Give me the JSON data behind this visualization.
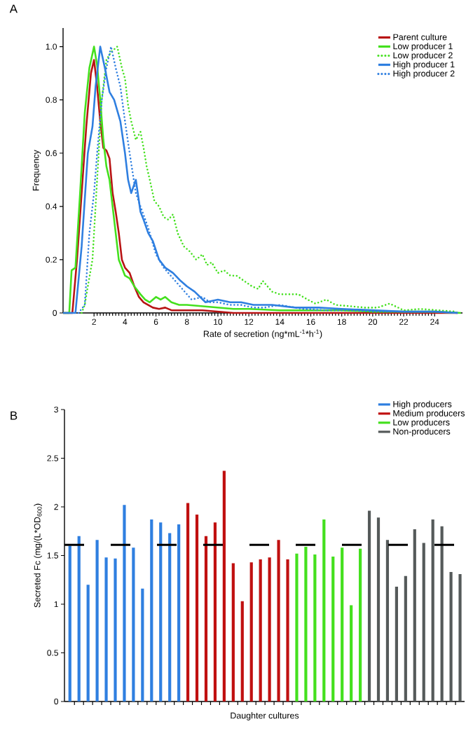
{
  "chart_data": [
    {
      "type": "line",
      "title": "A",
      "xlabel": "Rate of secretion (ng*mL$^{-1}$*h$^{-1}$)",
      "ylabel": "Frequency",
      "xlim": [
        0,
        25.8
      ],
      "ylim": [
        0,
        1.07
      ],
      "xticks": [
        2,
        4,
        6,
        8,
        10,
        12,
        14,
        16,
        18,
        20,
        22,
        24
      ],
      "yticks": [
        0,
        0.2,
        0.4,
        0.6,
        0.8,
        {
          "value": 1,
          "label": "1.0"
        }
      ],
      "legend": "top right",
      "line_style": "solid",
      "series": [
        {
          "name": "Parent culture",
          "color": "#b81414",
          "x": [
            0,
            0.6,
            0.9,
            1.2,
            1.5,
            1.8,
            2.0,
            2.2,
            2.4,
            2.6,
            2.8,
            3.0,
            3.2,
            3.4,
            3.6,
            3.8,
            4.0,
            4.3,
            4.6,
            4.9,
            5.2,
            5.5,
            5.8,
            6.2,
            6.6,
            7.0,
            7.5,
            8.0,
            9.0,
            10.0,
            11.0,
            12.0,
            14,
            18,
            22,
            25.5
          ],
          "values": [
            0,
            0,
            0.2,
            0.45,
            0.7,
            0.9,
            0.95,
            0.85,
            0.72,
            0.62,
            0.61,
            0.58,
            0.45,
            0.38,
            0.3,
            0.2,
            0.17,
            0.15,
            0.1,
            0.06,
            0.04,
            0.03,
            0.02,
            0.015,
            0.02,
            0.01,
            0.01,
            0.01,
            0.01,
            0.005,
            0,
            0,
            0,
            0,
            0,
            0
          ]
        },
        {
          "name": "Low producer 1",
          "color": "#44e01e",
          "x": [
            0,
            0.4,
            0.55,
            0.8,
            1.1,
            1.4,
            1.7,
            2.0,
            2.2,
            2.4,
            2.6,
            2.8,
            3.0,
            3.2,
            3.4,
            3.6,
            3.8,
            4.0,
            4.3,
            4.6,
            5.0,
            5.3,
            5.6,
            6.0,
            6.3,
            6.6,
            7.0,
            7.5,
            8.0,
            9.0,
            10.0,
            11.0,
            12.0,
            14.0,
            16.0,
            18.0,
            20.0,
            22.0,
            24.0,
            25.7
          ],
          "values": [
            0,
            0,
            0.16,
            0.17,
            0.45,
            0.75,
            0.92,
            1.0,
            0.93,
            0.8,
            0.65,
            0.55,
            0.5,
            0.4,
            0.3,
            0.2,
            0.17,
            0.14,
            0.13,
            0.1,
            0.07,
            0.05,
            0.04,
            0.06,
            0.05,
            0.06,
            0.04,
            0.03,
            0.03,
            0.025,
            0.02,
            0.015,
            0.015,
            0.01,
            0.01,
            0.01,
            0.005,
            0.005,
            0.005,
            0
          ]
        },
        {
          "name": "Low producer 2",
          "color": "#44e01e",
          "line_style": "dotted",
          "x": [
            1.2,
            1.4,
            1.6,
            1.9,
            2.1,
            2.3,
            2.5,
            2.8,
            3.1,
            3.5,
            3.8,
            4.0,
            4.2,
            4.4,
            4.7,
            5.0,
            5.2,
            5.4,
            5.6,
            5.9,
            6.2,
            6.5,
            6.8,
            7.1,
            7.4,
            7.8,
            8.2,
            8.6,
            9.0,
            9.3,
            9.6,
            10.0,
            10.4,
            10.8,
            11.2,
            11.7,
            12.2,
            12.6,
            12.9,
            13.5,
            14.0,
            14.6,
            15.2,
            15.8,
            16.3,
            17.0,
            17.6,
            18.6,
            19.5,
            20.3,
            21.1,
            22.0,
            23.1,
            24.2,
            25.4
          ],
          "values": [
            0,
            0.03,
            0.1,
            0.2,
            0.4,
            0.6,
            0.8,
            0.95,
            0.98,
            1.0,
            0.92,
            0.88,
            0.78,
            0.72,
            0.65,
            0.68,
            0.62,
            0.55,
            0.5,
            0.42,
            0.4,
            0.36,
            0.35,
            0.37,
            0.3,
            0.25,
            0.23,
            0.2,
            0.22,
            0.18,
            0.19,
            0.15,
            0.16,
            0.14,
            0.14,
            0.12,
            0.1,
            0.09,
            0.12,
            0.08,
            0.07,
            0.07,
            0.07,
            0.05,
            0.035,
            0.05,
            0.03,
            0.025,
            0.02,
            0.02,
            0.035,
            0.01,
            0.015,
            0.01,
            0.005
          ]
        },
        {
          "name": "High producer 1",
          "color": "#2f7fe0",
          "x": [
            0,
            0.8,
            1.2,
            1.6,
            1.9,
            2.1,
            2.4,
            2.7,
            3.0,
            3.3,
            3.7,
            4.0,
            4.2,
            4.4,
            4.7,
            5.0,
            5.2,
            5.5,
            5.8,
            6.2,
            6.6,
            7.1,
            7.6,
            8.0,
            8.5,
            9.2,
            10.0,
            10.8,
            11.5,
            12.3,
            13.5,
            15.0,
            16.5,
            18.0,
            20.0,
            22.0,
            24.0,
            25.5
          ],
          "values": [
            0,
            0,
            0.25,
            0.6,
            0.7,
            0.85,
            1.0,
            0.92,
            0.83,
            0.8,
            0.72,
            0.6,
            0.5,
            0.45,
            0.5,
            0.38,
            0.35,
            0.3,
            0.27,
            0.2,
            0.17,
            0.15,
            0.12,
            0.1,
            0.08,
            0.04,
            0.05,
            0.04,
            0.04,
            0.03,
            0.03,
            0.02,
            0.02,
            0.015,
            0.01,
            0.005,
            0.005,
            0
          ]
        },
        {
          "name": "High producer 2",
          "color": "#2f7fe0",
          "line_style": "dotted",
          "x": [
            1.0,
            1.4,
            1.7,
            2.0,
            2.2,
            2.5,
            2.8,
            3.1,
            3.4,
            3.7,
            4.0,
            4.3,
            4.7,
            5.0,
            5.5,
            6.0,
            6.5,
            7.1,
            7.7,
            8.3,
            9.0,
            9.5,
            10.0,
            10.8,
            11.5,
            12.3,
            13.0,
            14.0,
            15.5,
            17.0,
            18.5,
            20.0,
            22.0,
            24.0,
            25.5
          ],
          "values": [
            0,
            0.03,
            0.3,
            0.45,
            0.6,
            0.8,
            0.92,
            1.0,
            0.92,
            0.85,
            0.72,
            0.6,
            0.45,
            0.4,
            0.32,
            0.22,
            0.17,
            0.13,
            0.09,
            0.05,
            0.06,
            0.04,
            0.04,
            0.03,
            0.03,
            0.02,
            0.02,
            0.03,
            0.015,
            0.01,
            0.01,
            0.005,
            0.005,
            0.005,
            0
          ]
        }
      ]
    },
    {
      "type": "bar",
      "title": "B",
      "xlabel": "Daughter cultures",
      "ylabel": "Secreted Fc (mg/(L*OD$_{600}$)",
      "ylim": [
        0,
        3
      ],
      "yticks": [
        0,
        0.5,
        1,
        1.5,
        2,
        2.5,
        3
      ],
      "legend": "top right",
      "tick_labels": "y",
      "categories": [
        null,
        null,
        null,
        null,
        null,
        null,
        null,
        null,
        null,
        null,
        null,
        null,
        null,
        null,
        null,
        null,
        null,
        null,
        null,
        null,
        null,
        null,
        null,
        null,
        null,
        null,
        null,
        null,
        null,
        null,
        null,
        null,
        null,
        null,
        null,
        null,
        null,
        null,
        null,
        null,
        null,
        null,
        null,
        null
      ],
      "ref_lines": [
        {
          "axis": "y",
          "value": 1.61,
          "color": "#000000",
          "line_style": "dashed"
        }
      ],
      "series": [
        {
          "name": "High producers",
          "color": "#2f7fe0",
          "values": [
            1.6,
            1.7,
            1.2,
            1.66,
            1.48,
            1.47,
            2.02,
            1.58,
            1.16,
            1.87,
            1.84,
            1.73,
            1.82,
            null,
            null,
            null,
            null,
            null,
            null,
            null,
            null,
            null,
            null,
            null,
            null,
            null,
            null,
            null,
            null,
            null,
            null,
            null,
            null,
            null,
            null,
            null,
            null,
            null,
            null,
            null,
            null,
            null,
            null,
            null
          ]
        },
        {
          "name": "Medium producers",
          "color": "#c01010",
          "values": [
            null,
            null,
            null,
            null,
            null,
            null,
            null,
            null,
            null,
            null,
            null,
            null,
            null,
            2.04,
            1.92,
            1.7,
            1.84,
            2.37,
            1.42,
            1.03,
            1.43,
            1.46,
            1.48,
            1.66,
            1.46,
            null,
            null,
            null,
            null,
            null,
            null,
            null,
            null,
            null,
            null,
            null,
            null,
            null,
            null,
            null,
            null,
            null,
            null,
            null
          ]
        },
        {
          "name": "Low producers",
          "color": "#44e01e",
          "values": [
            null,
            null,
            null,
            null,
            null,
            null,
            null,
            null,
            null,
            null,
            null,
            null,
            null,
            null,
            null,
            null,
            null,
            null,
            null,
            null,
            null,
            null,
            null,
            null,
            null,
            1.52,
            1.59,
            1.51,
            1.87,
            1.49,
            1.58,
            0.99,
            1.57,
            null,
            null,
            null,
            null,
            null,
            null,
            null,
            null,
            null,
            null,
            null
          ]
        },
        {
          "name": "Non-producers",
          "color": "#555a5a",
          "values": [
            null,
            null,
            null,
            null,
            null,
            null,
            null,
            null,
            null,
            null,
            null,
            null,
            null,
            null,
            null,
            null,
            null,
            null,
            null,
            null,
            null,
            null,
            null,
            null,
            null,
            null,
            null,
            null,
            null,
            null,
            null,
            null,
            null,
            1.96,
            1.89,
            1.66,
            1.18,
            1.29,
            1.77,
            1.63,
            1.87,
            1.8,
            1.33,
            1.31
          ]
        }
      ]
    }
  ]
}
